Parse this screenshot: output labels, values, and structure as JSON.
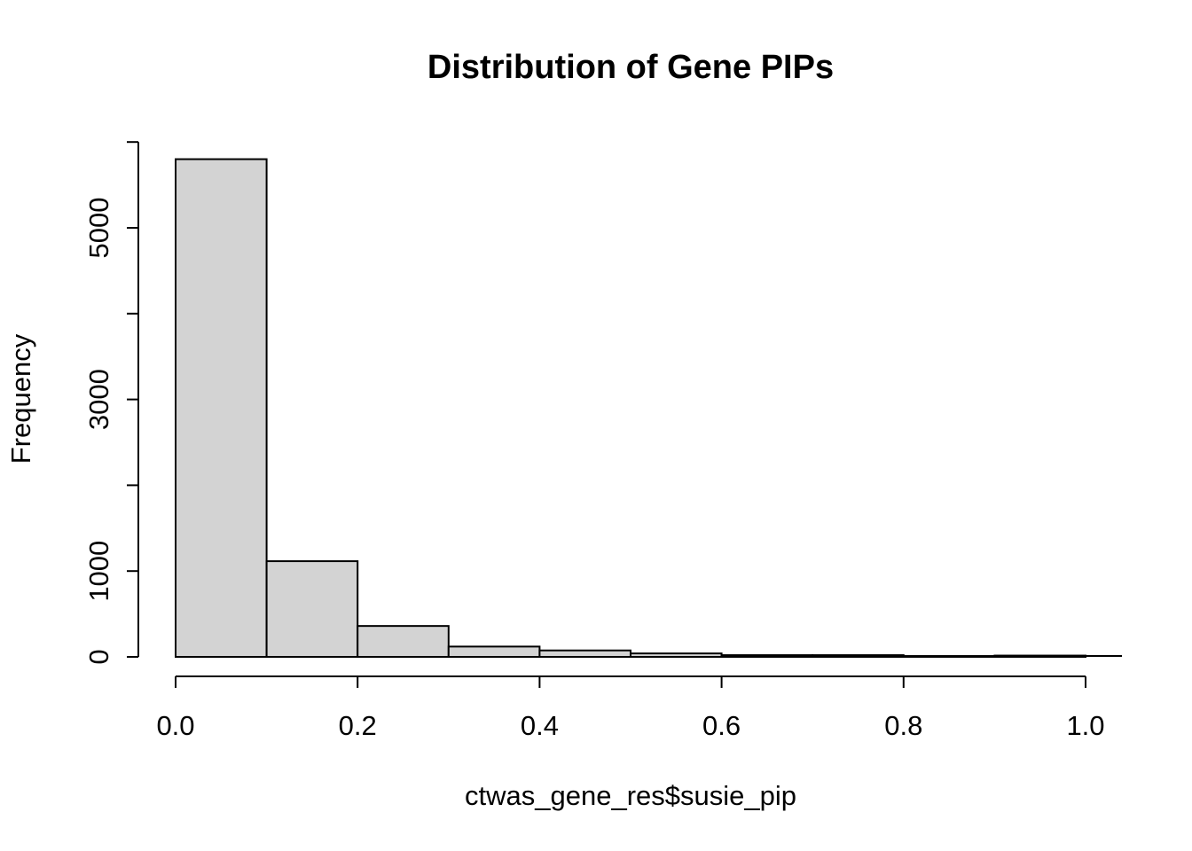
{
  "figure": {
    "background": "#ffffff",
    "text_color": "#000000"
  },
  "chart_data": {
    "type": "bar",
    "subtype": "histogram",
    "title": "Distribution of Gene PIPs",
    "xlabel": "ctwas_gene_res$susie_pip",
    "ylabel": "Frequency",
    "bin_edges": [
      0.0,
      0.1,
      0.2,
      0.3,
      0.4,
      0.5,
      0.6,
      0.7,
      0.8,
      0.9,
      1.0
    ],
    "counts": [
      5800,
      1115,
      360,
      120,
      75,
      40,
      20,
      20,
      10,
      15
    ],
    "x_tick_values": [
      0.0,
      0.2,
      0.4,
      0.6,
      0.8,
      1.0
    ],
    "x_tick_labels": [
      "0.0",
      "0.2",
      "0.4",
      "0.6",
      "0.8",
      "1.0"
    ],
    "y_tick_values": [
      0,
      1000,
      2000,
      3000,
      4000,
      5000,
      6000
    ],
    "y_tick_labels": [
      "0",
      "1000",
      "",
      "3000",
      "",
      "5000",
      ""
    ],
    "xlim": [
      -0.04,
      1.04
    ],
    "ylim": [
      0,
      6000
    ],
    "grid": false,
    "legend": false,
    "bar_fill": "#d3d3d3",
    "bar_stroke": "#000000",
    "axis_color": "#000000",
    "tail_line": {
      "x_from": 1.0,
      "x_to": 1.04
    }
  }
}
